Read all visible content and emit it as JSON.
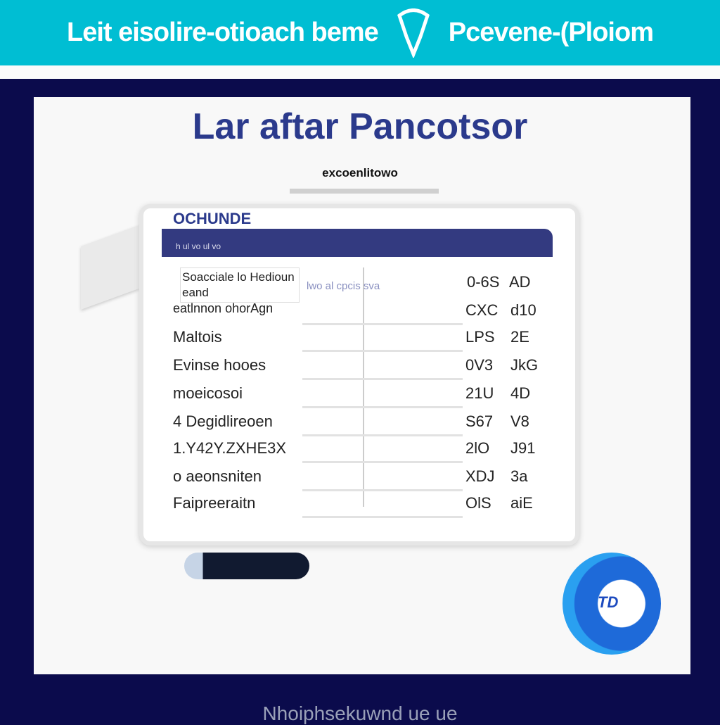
{
  "header": {
    "left_text": "Leit eisolire-otioach beme",
    "right_text": "Pcevene-(Ploiom",
    "icon": "map-pin-icon"
  },
  "panel": {
    "title": "Lar aftar Pancotsor",
    "subtitle": "excoenlitowo"
  },
  "card": {
    "brand": "OCHUNDE",
    "header_line": "h ul vo ul vo"
  },
  "table": {
    "header_row": {
      "label": "Soacciale lo Hedioun eand",
      "middle": "lwo al  cpcis sva",
      "c1": "0-6S",
      "c2": "AD"
    },
    "rows": [
      {
        "label": "eatlnnon ohorAgn",
        "c1": "CXC",
        "c2": "d10"
      },
      {
        "label": "Maltois",
        "c1": "LPS",
        "c2": "2E"
      },
      {
        "label": "Evinse hooes",
        "c1": "0V3",
        "c2": "JkG"
      },
      {
        "label": "moeicosoi",
        "c1": "21U",
        "c2": "4D"
      },
      {
        "label": "4 Degidlireoen",
        "c1": "S67",
        "c2": "V8"
      },
      {
        "label": "1.Y42Y.ZXHE3X",
        "c1": "2lO",
        "c2": "J91"
      },
      {
        "label": "o aeonsniten",
        "c1": "XDJ",
        "c2": "3a"
      },
      {
        "label": "Faipreeraitn",
        "c1": "OlS",
        "c2": "aiE"
      }
    ]
  },
  "logo_text": "TD",
  "footer": "Nhoiphsekuwnd ue ue"
}
